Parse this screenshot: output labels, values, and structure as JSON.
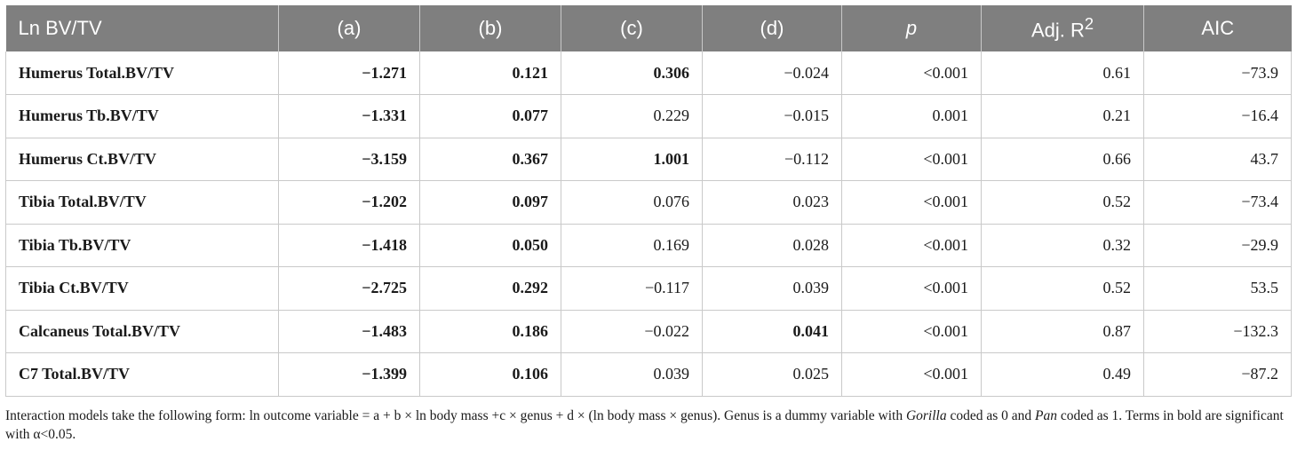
{
  "headers": [
    "Ln BV/TV",
    "(a)",
    "(b)",
    "(c)",
    "(d)",
    "p",
    "Adj. R",
    "AIC"
  ],
  "r2_sup": "2",
  "rows": [
    {
      "label": "Humerus Total.BV/TV",
      "values": [
        "−1.271",
        "0.121",
        "0.306",
        "−0.024",
        "<0.001",
        "0.61",
        "−73.9"
      ],
      "bold": [
        true,
        true,
        true,
        false,
        false,
        false,
        false
      ]
    },
    {
      "label": "Humerus Tb.BV/TV",
      "values": [
        "−1.331",
        "0.077",
        "0.229",
        "−0.015",
        "0.001",
        "0.21",
        "−16.4"
      ],
      "bold": [
        true,
        true,
        false,
        false,
        false,
        false,
        false
      ]
    },
    {
      "label": "Humerus Ct.BV/TV",
      "values": [
        "−3.159",
        "0.367",
        "1.001",
        "−0.112",
        "<0.001",
        "0.66",
        "43.7"
      ],
      "bold": [
        true,
        true,
        true,
        false,
        false,
        false,
        false
      ]
    },
    {
      "label": "Tibia Total.BV/TV",
      "values": [
        "−1.202",
        "0.097",
        "0.076",
        "0.023",
        "<0.001",
        "0.52",
        "−73.4"
      ],
      "bold": [
        true,
        true,
        false,
        false,
        false,
        false,
        false
      ]
    },
    {
      "label": "Tibia Tb.BV/TV",
      "values": [
        "−1.418",
        "0.050",
        "0.169",
        "0.028",
        "<0.001",
        "0.32",
        "−29.9"
      ],
      "bold": [
        true,
        true,
        false,
        false,
        false,
        false,
        false
      ]
    },
    {
      "label": "Tibia Ct.BV/TV",
      "values": [
        "−2.725",
        "0.292",
        "−0.117",
        "0.039",
        "<0.001",
        "0.52",
        "53.5"
      ],
      "bold": [
        true,
        true,
        false,
        false,
        false,
        false,
        false
      ]
    },
    {
      "label": "Calcaneus Total.BV/TV",
      "values": [
        "−1.483",
        "0.186",
        "−0.022",
        "0.041",
        "<0.001",
        "0.87",
        "−132.3"
      ],
      "bold": [
        true,
        true,
        false,
        true,
        false,
        false,
        false
      ]
    },
    {
      "label": "C7 Total.BV/TV",
      "values": [
        "−1.399",
        "0.106",
        "0.039",
        "0.025",
        "<0.001",
        "0.49",
        "−87.2"
      ],
      "bold": [
        true,
        true,
        false,
        false,
        false,
        false,
        false
      ]
    }
  ],
  "footnote": {
    "part1": "Interaction models take the following form: ln outcome variable = a + b × ln body mass +c × genus + d × (ln body mass × genus). Genus is a dummy variable with ",
    "gorilla": "Gorilla",
    "part2": " coded as 0 and ",
    "pan": "Pan",
    "part3": " coded as 1. Terms in bold are significant with α<0.05."
  }
}
